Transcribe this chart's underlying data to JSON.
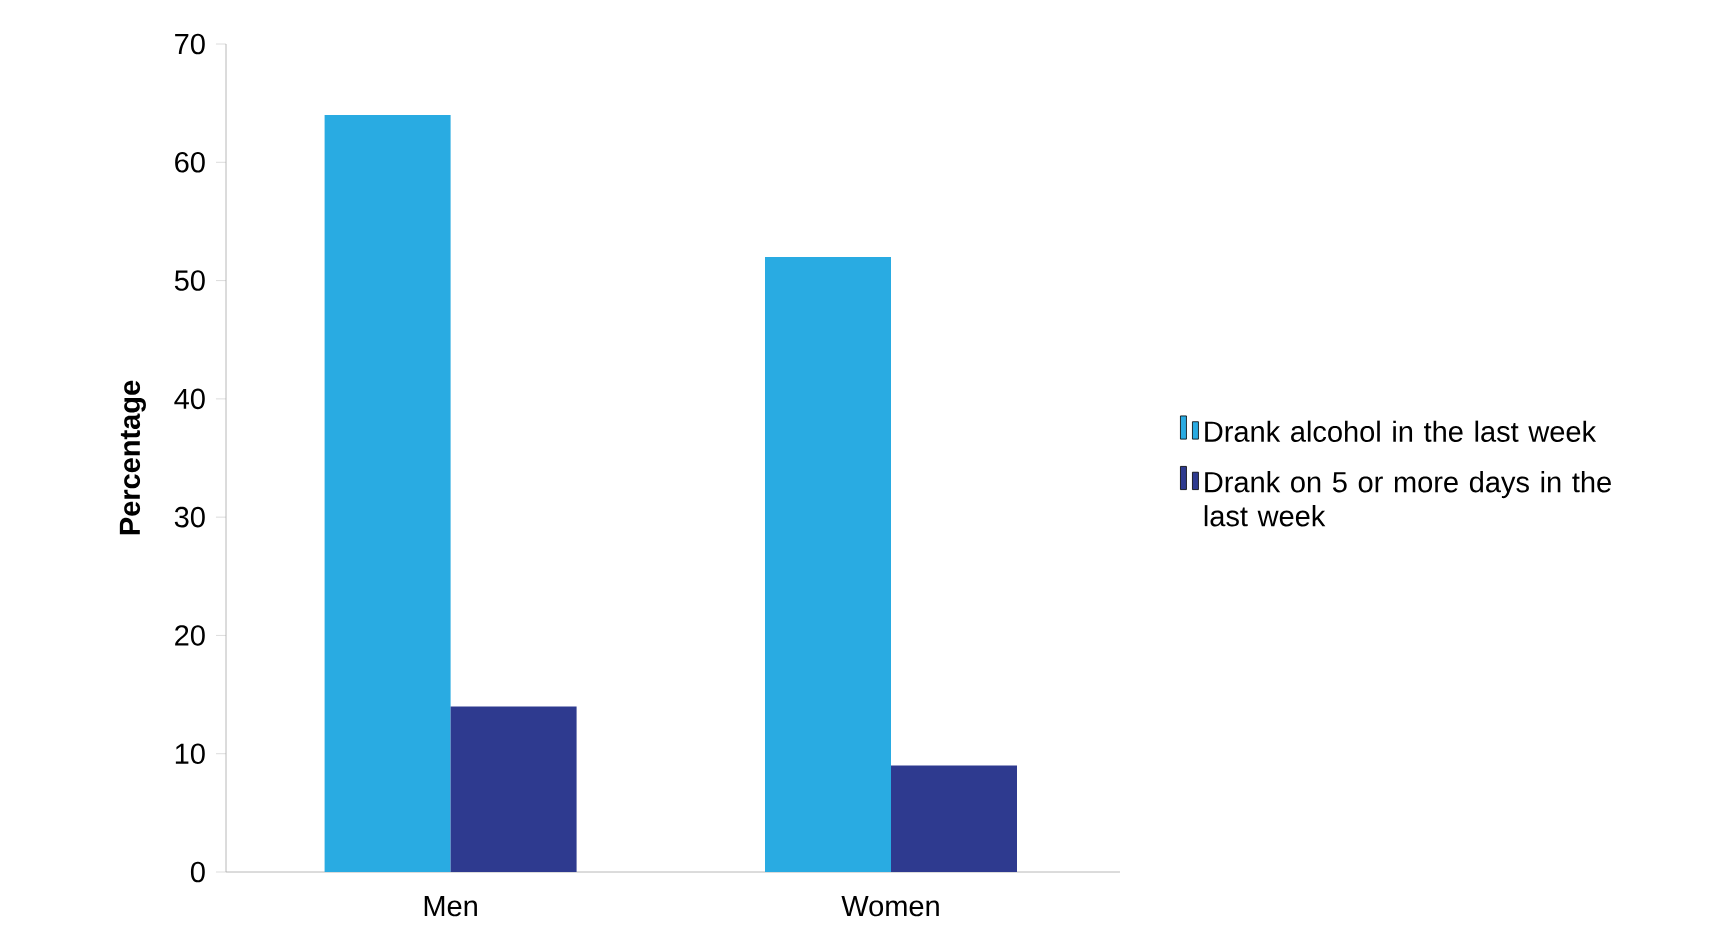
{
  "chart_data": {
    "type": "bar",
    "ylabel": "**Percentage**",
    "categories": [
      "Men",
      "Women"
    ],
    "series": [
      {
        "name": "Drank alcohol in the last week",
        "color": "#29abe2",
        "values": [
          64,
          52
        ]
      },
      {
        "name": "Drank on 5 or more days in the last week",
        "color": "#2e3a8f",
        "values": [
          14,
          9
        ]
      }
    ],
    "ylim": [
      0,
      70
    ],
    "yticks": [
      0,
      10,
      20,
      30,
      40,
      50,
      60,
      70
    ],
    "grid": false,
    "legend": "right"
  }
}
